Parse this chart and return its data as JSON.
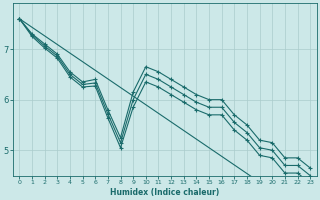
{
  "xlabel": "Humidex (Indice chaleur)",
  "background_color": "#cce8e8",
  "grid_color": "#aacccc",
  "line_color": "#1a6b6b",
  "x_values": [
    0,
    1,
    2,
    3,
    4,
    5,
    6,
    7,
    8,
    9,
    10,
    11,
    12,
    13,
    14,
    15,
    16,
    17,
    18,
    19,
    20,
    21,
    22,
    23
  ],
  "line_straight": [
    7.6,
    7.43,
    7.26,
    7.09,
    6.92,
    6.75,
    6.58,
    6.41,
    6.24,
    6.07,
    5.9,
    5.73,
    5.56,
    5.39,
    5.22,
    5.05,
    4.88,
    4.71,
    4.54,
    4.37,
    4.2,
    4.03,
    3.86,
    3.69
  ],
  "line1": [
    7.6,
    7.3,
    7.1,
    6.9,
    6.55,
    6.35,
    6.4,
    5.8,
    5.25,
    6.15,
    6.65,
    6.55,
    6.4,
    6.25,
    6.1,
    6.0,
    6.0,
    5.7,
    5.5,
    5.2,
    5.15,
    4.85,
    4.85,
    4.65
  ],
  "line2": [
    7.6,
    7.28,
    7.06,
    6.86,
    6.5,
    6.3,
    6.33,
    5.72,
    5.15,
    6.0,
    6.5,
    6.4,
    6.25,
    6.1,
    5.95,
    5.85,
    5.85,
    5.55,
    5.35,
    5.05,
    5.0,
    4.7,
    4.7,
    4.5
  ],
  "line3": [
    7.6,
    7.25,
    7.02,
    6.82,
    6.45,
    6.25,
    6.27,
    5.64,
    5.05,
    5.85,
    6.35,
    6.25,
    6.1,
    5.95,
    5.8,
    5.7,
    5.7,
    5.4,
    5.2,
    4.9,
    4.85,
    4.55,
    4.55,
    4.35
  ],
  "ylim": [
    4.5,
    7.9
  ],
  "xlim": [
    -0.5,
    23.5
  ],
  "yticks": [
    5,
    6,
    7
  ],
  "xticks": [
    0,
    1,
    2,
    3,
    4,
    5,
    6,
    7,
    8,
    9,
    10,
    11,
    12,
    13,
    14,
    15,
    16,
    17,
    18,
    19,
    20,
    21,
    22,
    23
  ]
}
